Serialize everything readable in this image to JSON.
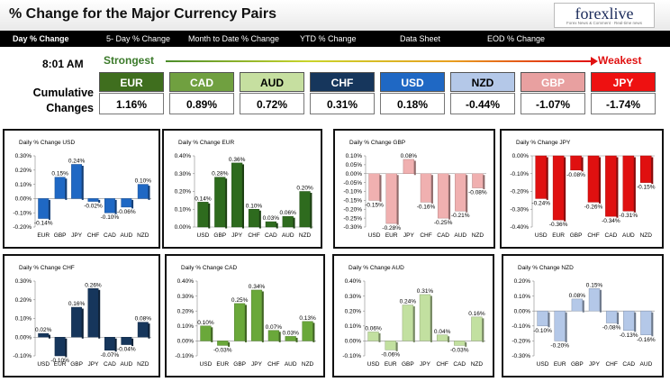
{
  "header": {
    "title": "% Change for the Major Currency Pairs",
    "logo_text": "forexlive",
    "logo_sub": "Forex News & Comment · Real-time news"
  },
  "tabs": [
    {
      "label": "Day % Change",
      "active": true
    },
    {
      "label": "5- Day % Change",
      "active": false
    },
    {
      "label": "Month to Date % Change",
      "active": false
    },
    {
      "label": "YTD % Change",
      "active": false
    },
    {
      "label": "Data Sheet",
      "active": false
    },
    {
      "label": "EOD % Change",
      "active": false
    }
  ],
  "summary": {
    "time": "8:01 AM",
    "strongest_label": "Strongest",
    "weakest_label": "Weakest",
    "cumulative_label_line1": "Cumulative",
    "cumulative_label_line2": "Changes",
    "currencies": [
      {
        "name": "EUR",
        "value": "1.16%",
        "bg": "#3f6e1e",
        "fg": "#ffffff"
      },
      {
        "name": "CAD",
        "value": "0.89%",
        "bg": "#70a040",
        "fg": "#ffffff"
      },
      {
        "name": "AUD",
        "value": "0.72%",
        "bg": "#c6dfa0",
        "fg": "#000000"
      },
      {
        "name": "CHF",
        "value": "0.31%",
        "bg": "#16365c",
        "fg": "#ffffff"
      },
      {
        "name": "USD",
        "value": "0.18%",
        "bg": "#1f68c4",
        "fg": "#ffffff"
      },
      {
        "name": "NZD",
        "value": "-0.44%",
        "bg": "#b4c8e8",
        "fg": "#000000"
      },
      {
        "name": "GBP",
        "value": "-1.07%",
        "bg": "#e8a0a0",
        "fg": "#ffffff"
      },
      {
        "name": "JPY",
        "value": "-1.74%",
        "bg": "#ee1111",
        "fg": "#ffffff"
      }
    ]
  },
  "chart_data": [
    {
      "type": "bar",
      "title": "Daily % Change USD",
      "categories": [
        "EUR",
        "GBP",
        "JPY",
        "CHF",
        "CAD",
        "AUD",
        "NZD"
      ],
      "values": [
        -0.14,
        0.15,
        0.24,
        -0.02,
        -0.1,
        -0.06,
        0.1
      ],
      "labels": [
        "-0.14%",
        "0.15%",
        "0.24%",
        "-0.02%",
        "-0.10%",
        "-0.06%",
        "0.10%"
      ],
      "ylim": [
        -0.2,
        0.3
      ],
      "ticks": [
        "-0.20%",
        "-0.10%",
        "0.00%",
        "0.10%",
        "0.20%",
        "0.30%"
      ],
      "ystep": 0.1,
      "colors": [
        "#1f68c4",
        "#1f68c4",
        "#1f68c4",
        "#1f68c4",
        "#1f68c4",
        "#1f68c4",
        "#1f68c4"
      ]
    },
    {
      "type": "bar",
      "title": "Daily % Change EUR",
      "categories": [
        "USD",
        "GBP",
        "JPY",
        "CHF",
        "CAD",
        "AUD",
        "NZD"
      ],
      "values": [
        0.14,
        0.28,
        0.36,
        0.1,
        0.03,
        0.06,
        0.2
      ],
      "labels": [
        "0.14%",
        "0.28%",
        "0.36%",
        "0.10%",
        "0.03%",
        "0.06%",
        "0.20%"
      ],
      "ylim": [
        0.0,
        0.4
      ],
      "ticks": [
        "0.00%",
        "0.10%",
        "0.20%",
        "0.30%",
        "0.40%"
      ],
      "ystep": 0.1,
      "colors": [
        "#2e6b1e",
        "#2e6b1e",
        "#2e6b1e",
        "#2e6b1e",
        "#2e6b1e",
        "#2e6b1e",
        "#2e6b1e"
      ]
    },
    {
      "type": "bar",
      "title": "Daily % Change GBP",
      "categories": [
        "USD",
        "EUR",
        "JPY",
        "CHF",
        "CAD",
        "AUD",
        "NZD"
      ],
      "values": [
        -0.15,
        -0.28,
        0.08,
        -0.16,
        -0.25,
        -0.21,
        -0.08
      ],
      "labels": [
        "-0.15%",
        "-0.28%",
        "0.08%",
        "-0.16%",
        "-0.25%",
        "-0.21%",
        "-0.08%"
      ],
      "ylim": [
        -0.3,
        0.1
      ],
      "ticks": [
        "-0.30%",
        "-0.25%",
        "-0.20%",
        "-0.15%",
        "-0.10%",
        "-0.05%",
        "0.00%",
        "0.05%",
        "0.10%"
      ],
      "ystep": 0.05,
      "colors": [
        "#f0b0b0",
        "#f0b0b0",
        "#f0b0b0",
        "#f0b0b0",
        "#f0b0b0",
        "#f0b0b0",
        "#f0b0b0"
      ]
    },
    {
      "type": "bar",
      "title": "Daily % Change JPY",
      "categories": [
        "USD",
        "EUR",
        "GBP",
        "CHF",
        "CAD",
        "AUD",
        "NZD"
      ],
      "values": [
        -0.24,
        -0.36,
        -0.08,
        -0.26,
        -0.34,
        -0.31,
        -0.15
      ],
      "labels": [
        "-0.24%",
        "-0.36%",
        "-0.08%",
        "-0.26%",
        "-0.34%",
        "-0.31%",
        "-0.15%"
      ],
      "ylim": [
        -0.4,
        0.0
      ],
      "ticks": [
        "-0.40%",
        "-0.30%",
        "-0.20%",
        "-0.10%",
        "0.00%"
      ],
      "ystep": 0.1,
      "colors": [
        "#e01010",
        "#e01010",
        "#e01010",
        "#e01010",
        "#e01010",
        "#e01010",
        "#e01010"
      ]
    },
    {
      "type": "bar",
      "title": "Daily % Change CHF",
      "categories": [
        "USD",
        "EUR",
        "GBP",
        "JPY",
        "CAD",
        "AUD",
        "NZD"
      ],
      "values": [
        0.02,
        -0.1,
        0.16,
        0.26,
        -0.07,
        -0.04,
        0.08
      ],
      "labels": [
        "0.02%",
        "-0.10%",
        "0.16%",
        "0.26%",
        "-0.07%",
        "-0.04%",
        "0.08%"
      ],
      "ylim": [
        -0.1,
        0.3
      ],
      "ticks": [
        "-0.10%",
        "0.00%",
        "0.10%",
        "0.20%",
        "0.30%"
      ],
      "ystep": 0.1,
      "colors": [
        "#16365c",
        "#16365c",
        "#16365c",
        "#16365c",
        "#16365c",
        "#16365c",
        "#16365c"
      ]
    },
    {
      "type": "bar",
      "title": "Daily % Change CAD",
      "categories": [
        "USD",
        "EUR",
        "GBP",
        "JPY",
        "CHF",
        "AUD",
        "NZD"
      ],
      "values": [
        0.1,
        -0.03,
        0.25,
        0.34,
        0.07,
        0.03,
        0.13
      ],
      "labels": [
        "0.10%",
        "-0.03%",
        "0.25%",
        "0.34%",
        "0.07%",
        "0.03%",
        "0.13%"
      ],
      "ylim": [
        -0.1,
        0.4
      ],
      "ticks": [
        "-0.10%",
        "0.00%",
        "0.10%",
        "0.20%",
        "0.30%",
        "0.40%"
      ],
      "ystep": 0.1,
      "colors": [
        "#6aa83a",
        "#6aa83a",
        "#6aa83a",
        "#6aa83a",
        "#6aa83a",
        "#6aa83a",
        "#6aa83a"
      ]
    },
    {
      "type": "bar",
      "title": "Daily % Change AUD",
      "categories": [
        "USD",
        "EUR",
        "GBP",
        "JPY",
        "CHF",
        "CAD",
        "NZD"
      ],
      "values": [
        0.06,
        -0.06,
        0.24,
        0.31,
        0.04,
        -0.03,
        0.16
      ],
      "labels": [
        "0.06%",
        "-0.06%",
        "0.24%",
        "0.31%",
        "0.04%",
        "-0.03%",
        "0.16%"
      ],
      "ylim": [
        -0.1,
        0.4
      ],
      "ticks": [
        "-0.10%",
        "0.00%",
        "0.10%",
        "0.20%",
        "0.30%",
        "0.40%"
      ],
      "ystep": 0.1,
      "colors": [
        "#c2e0a0",
        "#c2e0a0",
        "#c2e0a0",
        "#c2e0a0",
        "#c2e0a0",
        "#c2e0a0",
        "#c2e0a0"
      ]
    },
    {
      "type": "bar",
      "title": "Daily % Change NZD",
      "categories": [
        "USD",
        "EUR",
        "GBP",
        "JPY",
        "CHF",
        "CAD",
        "AUD"
      ],
      "values": [
        -0.1,
        -0.2,
        0.08,
        0.15,
        -0.08,
        -0.13,
        -0.16
      ],
      "labels": [
        "-0.10%",
        "-0.20%",
        "0.08%",
        "0.15%",
        "-0.08%",
        "-0.13%",
        "-0.16%"
      ],
      "ylim": [
        -0.3,
        0.2
      ],
      "ticks": [
        "-0.30%",
        "-0.20%",
        "-0.10%",
        "0.00%",
        "0.10%",
        "0.20%"
      ],
      "ystep": 0.1,
      "colors": [
        "#b4c8e8",
        "#b4c8e8",
        "#b4c8e8",
        "#b4c8e8",
        "#b4c8e8",
        "#b4c8e8",
        "#b4c8e8"
      ]
    }
  ]
}
